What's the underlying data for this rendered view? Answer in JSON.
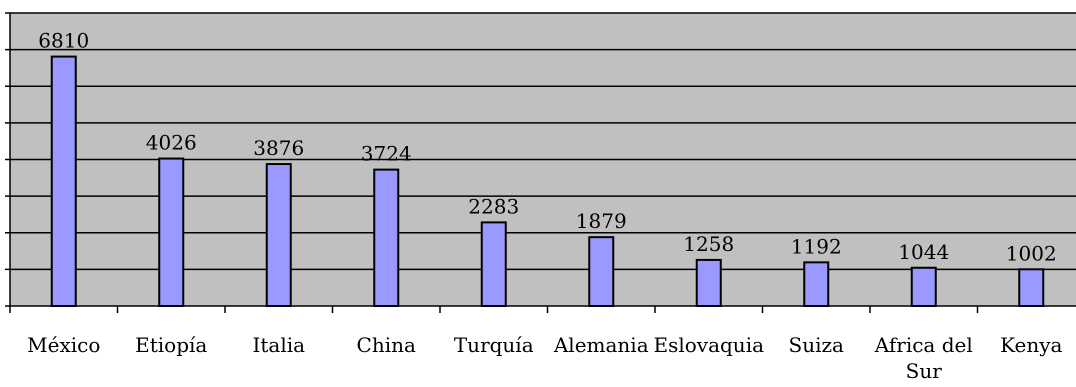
{
  "chart_data": {
    "type": "bar",
    "categories": [
      "México",
      "Etiopía",
      "Italia",
      "China",
      "Turquía",
      "Alemania",
      "Eslovaquia",
      "Suiza",
      "Africa del Sur",
      "Kenya"
    ],
    "values": [
      6810,
      4026,
      3876,
      3724,
      2283,
      1879,
      1258,
      1192,
      1044,
      1002
    ],
    "data_labels": [
      "6810",
      "4026",
      "3876",
      "3724",
      "2283",
      "1879",
      "1258",
      "1192",
      "1044",
      "1002"
    ],
    "title": "",
    "xlabel": "",
    "ylabel": "",
    "ylim": [
      0,
      8000
    ],
    "grid": true,
    "gridline_step": 1000,
    "legend": "none",
    "colors": {
      "bar_fill": "#9999ff",
      "bar_stroke": "#000000",
      "plot_background": "#c0c0c0",
      "gridline": "#000000"
    }
  }
}
